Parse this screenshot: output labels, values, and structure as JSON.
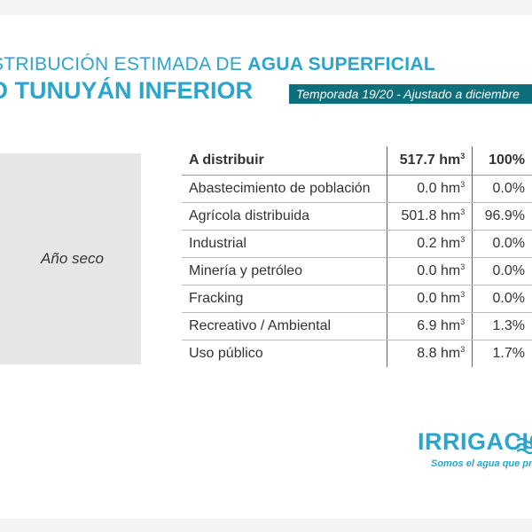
{
  "header": {
    "title_line1_prefix": "STRIBUCIÓN ESTIMADA DE ",
    "title_line1_highlight": "AGUA SUPERFICIAL",
    "title_line2": "O TUNUYÁN INFERIOR",
    "season_banner": "Temporada 19/20 - Ajustado a diciembre"
  },
  "scenario": {
    "label": "Año seco"
  },
  "table": {
    "rows": [
      {
        "label": "A distribuir",
        "volume": "517.7 hm³",
        "percent": "100%",
        "is_header": true
      },
      {
        "label": "Abastecimiento de población",
        "volume": "0.0 hm³",
        "percent": "0.0%"
      },
      {
        "label": "Agrícola distribuida",
        "volume": "501.8 hm³",
        "percent": "96.9%"
      },
      {
        "label": "Industrial",
        "volume": "0.2 hm³",
        "percent": "0.0%"
      },
      {
        "label": "Minería y petróleo",
        "volume": "0.0 hm³",
        "percent": "0.0%"
      },
      {
        "label": "Fracking",
        "volume": "0.0 hm³",
        "percent": "0.0%"
      },
      {
        "label": "Recreativo / Ambiental",
        "volume": "6.9 hm³",
        "percent": "1.3%"
      },
      {
        "label": "Uso público",
        "volume": "8.8 hm³",
        "percent": "1.7%"
      }
    ]
  },
  "brand": {
    "name": "IRRIGACIÓN",
    "tagline": "Somos el agua que producimos"
  },
  "colors": {
    "accent": "#2ba5cc",
    "banner": "#0d6f7b",
    "text": "#333333",
    "scenario_bg": "#e6e6e6"
  }
}
